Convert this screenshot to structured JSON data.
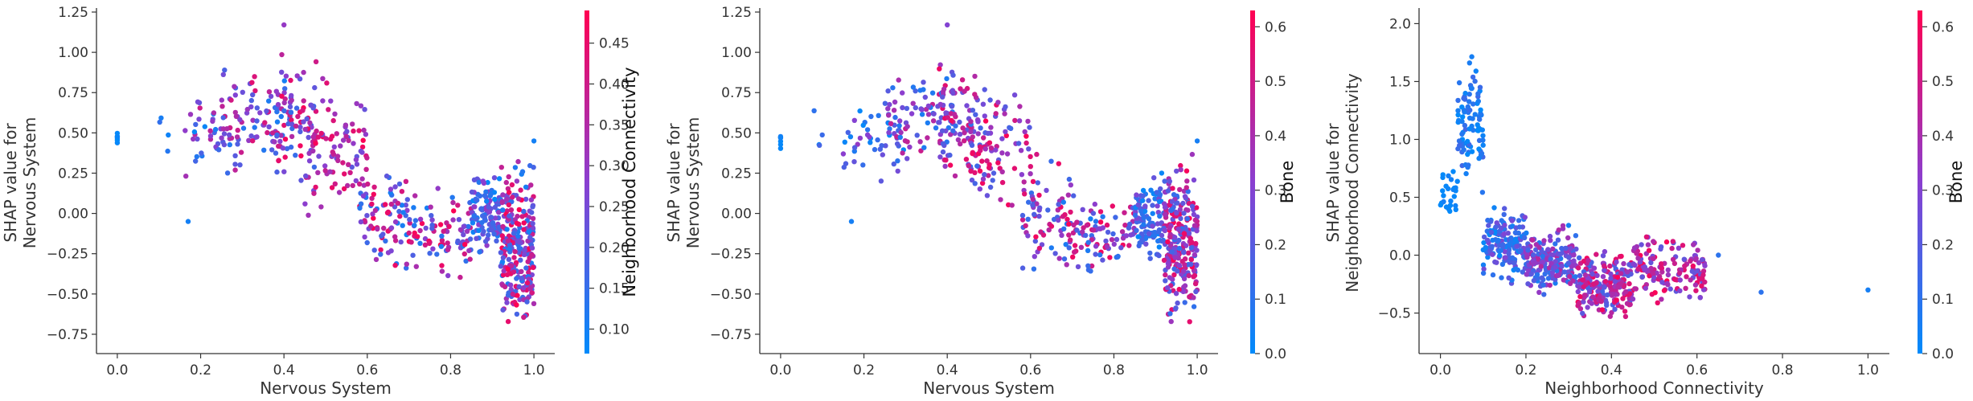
{
  "chart_data": [
    {
      "type": "scatter",
      "title": "",
      "xlabel": "Nervous System",
      "ylabel": "SHAP value for\nNervous System",
      "xlim": [
        -0.05,
        1.05
      ],
      "ylim": [
        -0.87,
        1.25
      ],
      "xticks": [
        0.0,
        0.2,
        0.4,
        0.6,
        0.8,
        1.0
      ],
      "xtick_labels": [
        "0.0",
        "0.2",
        "0.4",
        "0.6",
        "0.8",
        "1.0"
      ],
      "yticks": [
        -0.75,
        -0.5,
        -0.25,
        0.0,
        0.25,
        0.5,
        0.75,
        1.0,
        1.25
      ],
      "ytick_labels": [
        "−0.75",
        "−0.50",
        "−0.25",
        "0.00",
        "0.25",
        "0.50",
        "0.75",
        "1.00",
        "1.25"
      ],
      "color_variable": "Neighborhood Connectivity",
      "colorbar": {
        "label": "Neighborhood Connectivity",
        "range": [
          0.07,
          0.49
        ],
        "ticks": [
          0.1,
          0.15,
          0.2,
          0.25,
          0.3,
          0.35,
          0.4,
          0.45
        ],
        "tick_labels": [
          "0.10",
          "0.15",
          "0.20",
          "0.25",
          "0.30",
          "0.35",
          "0.40",
          "0.45"
        ],
        "cmap": [
          "#008bfb",
          "#ff0052"
        ]
      },
      "series": [
        {
          "clusters": [
            {
              "x": [
                0.0,
                0.0
              ],
              "y": [
                0.35,
                0.55
              ],
              "c": [
                0.07,
                0.09
              ],
              "n": 6
            },
            {
              "x": [
                0.08,
                0.13
              ],
              "y": [
                0.3,
                0.7
              ],
              "c": [
                0.08,
                0.2
              ],
              "n": 4
            },
            {
              "x": [
                0.15,
                0.3
              ],
              "y": [
                0.15,
                0.8
              ],
              "c": [
                0.08,
                0.4
              ],
              "n": 45
            },
            {
              "x": [
                0.25,
                0.42
              ],
              "y": [
                0.2,
                1.0
              ],
              "c": [
                0.1,
                0.45
              ],
              "n": 90
            },
            {
              "x": [
                0.38,
                0.48
              ],
              "y": [
                0.0,
                1.15
              ],
              "c": [
                0.15,
                0.49
              ],
              "n": 70
            },
            {
              "x": [
                0.45,
                0.6
              ],
              "y": [
                -0.1,
                0.9
              ],
              "c": [
                0.2,
                0.49
              ],
              "n": 90
            },
            {
              "x": [
                0.58,
                0.7
              ],
              "y": [
                -0.45,
                0.4
              ],
              "c": [
                0.1,
                0.49
              ],
              "n": 80
            },
            {
              "x": [
                0.7,
                0.85
              ],
              "y": [
                -0.45,
                0.2
              ],
              "c": [
                0.1,
                0.49
              ],
              "n": 90
            },
            {
              "x": [
                0.85,
                0.92
              ],
              "y": [
                -0.35,
                0.3
              ],
              "c": [
                0.07,
                0.3
              ],
              "n": 110
            },
            {
              "x": [
                0.92,
                1.0
              ],
              "y": [
                -0.8,
                0.4
              ],
              "c": [
                0.1,
                0.49
              ],
              "n": 260
            }
          ],
          "outliers": [
            {
              "x": 0.17,
              "y": -0.05,
              "c": 0.1
            },
            {
              "x": 0.4,
              "y": 1.17,
              "c": 0.3
            },
            {
              "x": 1.0,
              "y": 0.45,
              "c": 0.1
            }
          ]
        }
      ]
    },
    {
      "type": "scatter",
      "title": "",
      "xlabel": "Nervous System",
      "ylabel": "SHAP value for\nNervous System",
      "xlim": [
        -0.05,
        1.05
      ],
      "ylim": [
        -0.87,
        1.25
      ],
      "xticks": [
        0.0,
        0.2,
        0.4,
        0.6,
        0.8,
        1.0
      ],
      "xtick_labels": [
        "0.0",
        "0.2",
        "0.4",
        "0.6",
        "0.8",
        "1.0"
      ],
      "yticks": [
        -0.75,
        -0.5,
        -0.25,
        0.0,
        0.25,
        0.5,
        0.75,
        1.0,
        1.25
      ],
      "ytick_labels": [
        "−0.75",
        "−0.50",
        "−0.25",
        "0.00",
        "0.25",
        "0.50",
        "0.75",
        "1.00",
        "1.25"
      ],
      "color_variable": "Bone",
      "colorbar": {
        "label": "Bone",
        "range": [
          0.0,
          0.63
        ],
        "ticks": [
          0.0,
          0.1,
          0.2,
          0.3,
          0.4,
          0.5,
          0.6
        ],
        "tick_labels": [
          "0.0",
          "0.1",
          "0.2",
          "0.3",
          "0.4",
          "0.5",
          "0.6"
        ],
        "cmap": [
          "#008bfb",
          "#ff0052"
        ]
      },
      "series": [
        {
          "clusters": [
            {
              "x": [
                0.0,
                0.0
              ],
              "y": [
                0.35,
                0.55
              ],
              "c": [
                0.0,
                0.05
              ],
              "n": 6
            },
            {
              "x": [
                0.08,
                0.13
              ],
              "y": [
                0.3,
                0.7
              ],
              "c": [
                0.0,
                0.2
              ],
              "n": 4
            },
            {
              "x": [
                0.15,
                0.3
              ],
              "y": [
                0.15,
                0.8
              ],
              "c": [
                0.0,
                0.35
              ],
              "n": 45
            },
            {
              "x": [
                0.25,
                0.42
              ],
              "y": [
                0.2,
                1.0
              ],
              "c": [
                0.05,
                0.5
              ],
              "n": 90
            },
            {
              "x": [
                0.38,
                0.48
              ],
              "y": [
                0.0,
                1.15
              ],
              "c": [
                0.1,
                0.6
              ],
              "n": 70
            },
            {
              "x": [
                0.45,
                0.6
              ],
              "y": [
                -0.1,
                0.9
              ],
              "c": [
                0.15,
                0.62
              ],
              "n": 90
            },
            {
              "x": [
                0.58,
                0.7
              ],
              "y": [
                -0.45,
                0.4
              ],
              "c": [
                0.05,
                0.62
              ],
              "n": 80
            },
            {
              "x": [
                0.7,
                0.85
              ],
              "y": [
                -0.45,
                0.2
              ],
              "c": [
                0.05,
                0.62
              ],
              "n": 90
            },
            {
              "x": [
                0.85,
                0.92
              ],
              "y": [
                -0.35,
                0.3
              ],
              "c": [
                0.0,
                0.3
              ],
              "n": 110
            },
            {
              "x": [
                0.92,
                1.0
              ],
              "y": [
                -0.8,
                0.4
              ],
              "c": [
                0.1,
                0.62
              ],
              "n": 260
            }
          ],
          "outliers": [
            {
              "x": 0.17,
              "y": -0.05,
              "c": 0.05
            },
            {
              "x": 0.4,
              "y": 1.17,
              "c": 0.3
            },
            {
              "x": 1.0,
              "y": 0.45,
              "c": 0.05
            }
          ]
        }
      ]
    },
    {
      "type": "scatter",
      "title": "",
      "xlabel": "Neighborhood Connectivity",
      "ylabel": "SHAP value for\nNeighborhood Connectivity",
      "xlim": [
        -0.05,
        1.05
      ],
      "ylim": [
        -0.85,
        2.1
      ],
      "xticks": [
        0.0,
        0.2,
        0.4,
        0.6,
        0.8,
        1.0
      ],
      "xtick_labels": [
        "0.0",
        "0.2",
        "0.4",
        "0.6",
        "0.8",
        "1.0"
      ],
      "yticks": [
        -0.5,
        0.0,
        0.5,
        1.0,
        1.5,
        2.0
      ],
      "ytick_labels": [
        "−0.5",
        "0.0",
        "0.5",
        "1.0",
        "1.5",
        "2.0"
      ],
      "color_variable": "Bone",
      "colorbar": {
        "label": "Bone",
        "range": [
          0.0,
          0.63
        ],
        "ticks": [
          0.0,
          0.1,
          0.2,
          0.3,
          0.4,
          0.5,
          0.6
        ],
        "tick_labels": [
          "0.0",
          "0.1",
          "0.2",
          "0.3",
          "0.4",
          "0.5",
          "0.6"
        ],
        "cmap": [
          "#008bfb",
          "#ff0052"
        ]
      },
      "series": [
        {
          "clusters": [
            {
              "x": [
                0.0,
                0.04
              ],
              "y": [
                0.2,
                0.9
              ],
              "c": [
                0.0,
                0.05
              ],
              "n": 25
            },
            {
              "x": [
                0.04,
                0.1
              ],
              "y": [
                0.3,
                1.95
              ],
              "c": [
                0.0,
                0.15
              ],
              "n": 90
            },
            {
              "x": [
                0.1,
                0.2
              ],
              "y": [
                -0.3,
                0.5
              ],
              "c": [
                0.0,
                0.3
              ],
              "n": 160
            },
            {
              "x": [
                0.2,
                0.32
              ],
              "y": [
                -0.4,
                0.3
              ],
              "c": [
                0.05,
                0.45
              ],
              "n": 200
            },
            {
              "x": [
                0.32,
                0.45
              ],
              "y": [
                -0.65,
                0.15
              ],
              "c": [
                0.15,
                0.62
              ],
              "n": 220
            },
            {
              "x": [
                0.45,
                0.62
              ],
              "y": [
                -0.5,
                0.25
              ],
              "c": [
                0.2,
                0.62
              ],
              "n": 160
            }
          ],
          "outliers": [
            {
              "x": 0.65,
              "y": 0.0,
              "c": 0.1
            },
            {
              "x": 0.75,
              "y": -0.32,
              "c": 0.1
            },
            {
              "x": 1.0,
              "y": -0.3,
              "c": 0.05
            }
          ]
        }
      ]
    }
  ]
}
